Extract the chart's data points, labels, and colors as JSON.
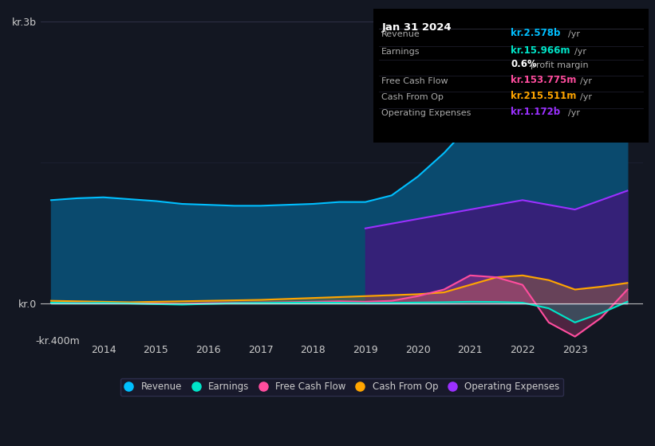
{
  "background_color": "#131722",
  "plot_bg_color": "#131722",
  "title": "Jan 31 2024",
  "tooltip": {
    "Revenue": "kr.2.578b /yr",
    "Earnings": "kr.15.966m /yr",
    "profit_margin": "0.6%",
    "Free_Cash_Flow": "kr.153.775m /yr",
    "Cash_From_Op": "kr.215.511m /yr",
    "Operating_Expenses": "kr.1.172b /yr"
  },
  "colors": {
    "revenue": "#00bfff",
    "revenue_fill": "#0a4a6e",
    "earnings": "#00e5c8",
    "free_cash_flow": "#ff4d9e",
    "cash_from_op": "#ffa500",
    "operating_expenses": "#9b30ff",
    "operating_expenses_fill": "#3d1a7a"
  },
  "years": [
    2013.0,
    2013.5,
    2014.0,
    2014.5,
    2015.0,
    2015.5,
    2016.0,
    2016.5,
    2017.0,
    2017.5,
    2018.0,
    2018.5,
    2019.0,
    2019.5,
    2020.0,
    2020.5,
    2021.0,
    2021.5,
    2022.0,
    2022.5,
    2023.0,
    2023.5,
    2024.0
  ],
  "revenue": [
    1100,
    1120,
    1130,
    1110,
    1090,
    1060,
    1050,
    1040,
    1040,
    1050,
    1060,
    1080,
    1080,
    1150,
    1350,
    1600,
    1900,
    2250,
    2600,
    2500,
    2200,
    2700,
    2900
  ],
  "earnings": [
    10,
    5,
    8,
    2,
    -5,
    -10,
    -3,
    5,
    8,
    10,
    12,
    10,
    5,
    8,
    12,
    15,
    20,
    18,
    10,
    -50,
    -200,
    -100,
    20
  ],
  "free_cash_flow": [
    10,
    8,
    5,
    3,
    0,
    -5,
    5,
    10,
    12,
    15,
    20,
    25,
    20,
    30,
    80,
    150,
    300,
    280,
    200,
    -200,
    -350,
    -150,
    150
  ],
  "cash_from_op": [
    30,
    25,
    20,
    15,
    20,
    25,
    30,
    35,
    40,
    50,
    60,
    70,
    80,
    90,
    100,
    120,
    200,
    280,
    300,
    250,
    150,
    180,
    220
  ],
  "operating_expenses": [
    0,
    0,
    0,
    0,
    0,
    0,
    0,
    0,
    0,
    0,
    0,
    0,
    800,
    850,
    900,
    950,
    1000,
    1050,
    1100,
    1050,
    1000,
    1100,
    1200
  ],
  "ylim": [
    -400,
    3100
  ],
  "yticks": [
    0,
    3000
  ],
  "ytick_labels": [
    "kr.0",
    "kr.3b"
  ],
  "ytick_neg": -400,
  "ytick_neg_label": "-kr.400m",
  "xtick_years": [
    2014,
    2015,
    2016,
    2017,
    2018,
    2019,
    2020,
    2021,
    2022,
    2023
  ],
  "legend_items": [
    "Revenue",
    "Earnings",
    "Free Cash Flow",
    "Cash From Op",
    "Operating Expenses"
  ],
  "legend_colors": [
    "#00bfff",
    "#00e5c8",
    "#ff4d9e",
    "#ffa500",
    "#9b30ff"
  ]
}
